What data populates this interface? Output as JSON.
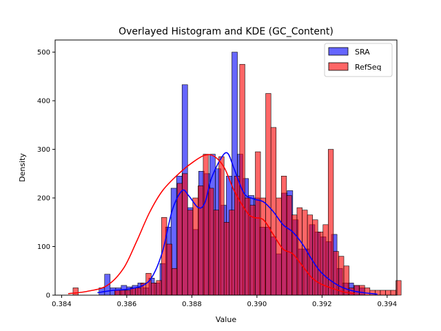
{
  "chart_data": {
    "type": "histogram",
    "title": "Overlayed Histogram and KDE (GC_Content)",
    "xlabel": "Value",
    "ylabel": "Density",
    "xlim": [
      0.3838,
      0.3943
    ],
    "ylim": [
      0,
      525
    ],
    "xticks": [
      0.384,
      0.386,
      0.388,
      0.39,
      0.392,
      0.394
    ],
    "xtick_labels": [
      "0.384",
      "0.386",
      "0.388",
      "0.390",
      "0.392",
      "0.394"
    ],
    "yticks": [
      0,
      100,
      200,
      300,
      400,
      500
    ],
    "ytick_labels": [
      "0",
      "100",
      "200",
      "300",
      "400",
      "500"
    ],
    "legend": {
      "position": "top-right"
    },
    "series": [
      {
        "name": "SRA",
        "color": "#0000ff",
        "bin_start": 0.38515,
        "bin_width": 0.00017,
        "counts": [
          15,
          43,
          15,
          15,
          20,
          17,
          20,
          25,
          15,
          35,
          25,
          65,
          140,
          220,
          245,
          433,
          180,
          135,
          255,
          250,
          290,
          260,
          185,
          245,
          500,
          290,
          240,
          205,
          200,
          140,
          140,
          120,
          85,
          210,
          215,
          155,
          95,
          95,
          145,
          130,
          120,
          110,
          125,
          55,
          25,
          25,
          20,
          15
        ],
        "kde": {
          "x": [
            0.3851,
            0.3856,
            0.386,
            0.3865,
            0.3868,
            0.3871,
            0.3874,
            0.3877,
            0.3879,
            0.3882,
            0.3884,
            0.3886,
            0.3889,
            0.3891,
            0.3893,
            0.3896,
            0.3899,
            0.3902,
            0.3905,
            0.3908,
            0.3911,
            0.3914,
            0.3917,
            0.392,
            0.3925,
            0.393,
            0.3937
          ],
          "y": [
            5,
            10,
            12,
            20,
            40,
            90,
            175,
            215,
            205,
            180,
            190,
            240,
            282,
            292,
            260,
            210,
            198,
            192,
            172,
            145,
            130,
            105,
            72,
            45,
            20,
            8,
            2
          ]
        }
      },
      {
        "name": "RefSeq",
        "color": "#ff0000",
        "bin_start": 0.38435,
        "bin_width": 0.00016,
        "counts": [
          15,
          0,
          0,
          0,
          0,
          0,
          0,
          0,
          10,
          10,
          10,
          15,
          15,
          25,
          45,
          25,
          30,
          160,
          105,
          55,
          230,
          250,
          175,
          200,
          225,
          290,
          220,
          175,
          285,
          150,
          175,
          245,
          475,
          200,
          185,
          295,
          200,
          415,
          345,
          200,
          245,
          205,
          165,
          180,
          175,
          165,
          155,
          130,
          145,
          300,
          90,
          80,
          60,
          15,
          20,
          20,
          15,
          10,
          10,
          10,
          10,
          10,
          30
        ],
        "kde": {
          "x": [
            0.3842,
            0.3848,
            0.3854,
            0.3859,
            0.3863,
            0.3867,
            0.3871,
            0.3876,
            0.388,
            0.3884,
            0.3887,
            0.389,
            0.3893,
            0.3897,
            0.3899,
            0.3902,
            0.3905,
            0.3908,
            0.3911,
            0.3914,
            0.3917,
            0.392,
            0.3924,
            0.3927,
            0.393
          ],
          "y": [
            3,
            8,
            20,
            55,
            110,
            170,
            215,
            250,
            272,
            288,
            285,
            262,
            215,
            170,
            160,
            155,
            125,
            95,
            85,
            60,
            35,
            22,
            12,
            6,
            3
          ]
        }
      }
    ]
  }
}
